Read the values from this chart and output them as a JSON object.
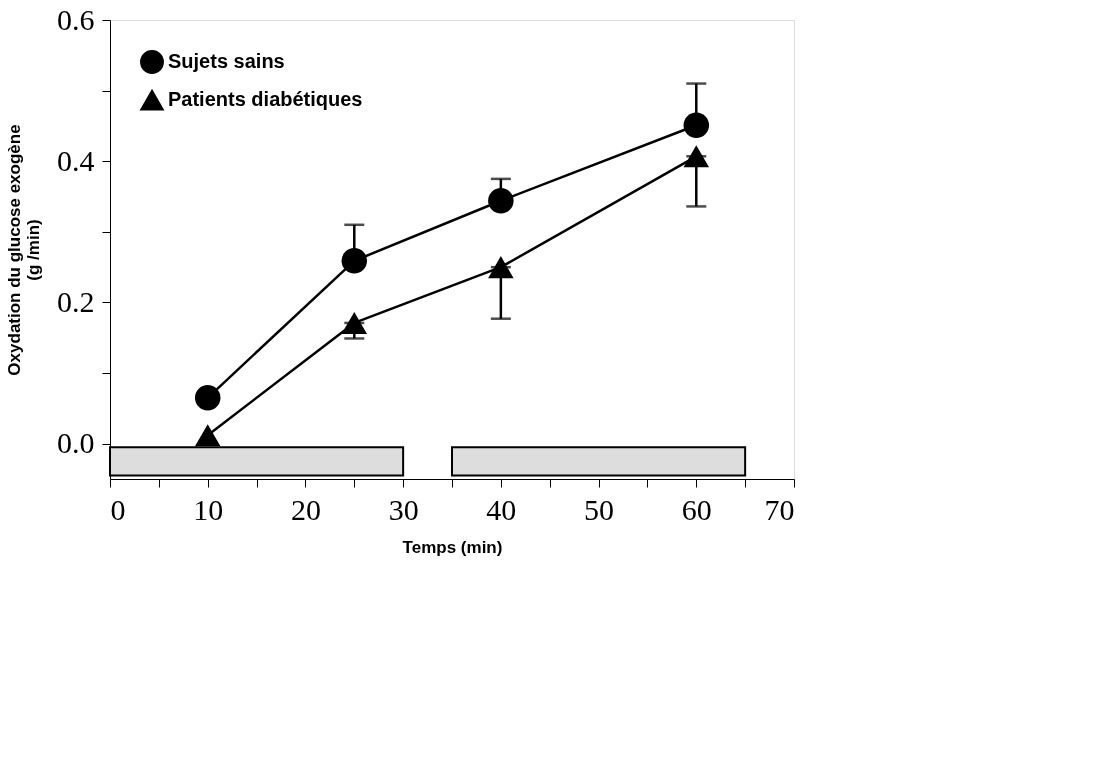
{
  "chart_data": {
    "type": "line",
    "xlabel": "Temps (min)",
    "ylabel": "Oxydation du glucose exogène\n(g /min)",
    "x": [
      10,
      25,
      40,
      60
    ],
    "series": [
      {
        "name": "Sujets sains",
        "color": "#000000",
        "marker": "circle",
        "values": [
          0.065,
          0.259,
          0.344,
          0.451
        ],
        "errors": [
          null,
          [
            0.259,
            0.31
          ],
          [
            0.344,
            0.375
          ],
          [
            0.451,
            0.51
          ]
        ]
      },
      {
        "name": "Patients diabétiques",
        "color": "#000000",
        "marker": "triangle",
        "values": [
          0.012,
          0.171,
          0.25,
          0.407
        ],
        "errors": [
          null,
          [
            0.149,
            0.171
          ],
          [
            0.177,
            0.25
          ],
          [
            0.336,
            0.407
          ]
        ]
      }
    ],
    "xlim": [
      0,
      70
    ],
    "xticks": [
      0,
      {
        "value": 5,
        "label": null
      },
      10,
      {
        "value": 15,
        "label": null
      },
      20,
      {
        "value": 25,
        "label": null
      },
      30,
      {
        "value": 35,
        "label": null
      },
      40,
      {
        "value": 45,
        "label": null
      },
      50,
      {
        "value": 55,
        "label": null
      },
      60,
      {
        "value": 65,
        "label": null
      },
      70
    ],
    "ylim": [
      -0.05,
      0.6
    ],
    "yticks": [
      {
        "value": 0,
        "label": "0.0"
      },
      {
        "value": 0.1,
        "label": null
      },
      {
        "value": 0.2,
        "label": "0.2"
      },
      {
        "value": 0.3,
        "label": null
      },
      {
        "value": 0.4,
        "label": "0.4"
      },
      {
        "value": 0.5,
        "label": null
      },
      {
        "value": 0.6,
        "label": "0.6"
      }
    ],
    "bands": [
      {
        "axis": "x",
        "from": 0,
        "to": 30,
        "color": "#dddddd"
      },
      {
        "axis": "x",
        "from": 35,
        "to": 65,
        "color": "#dddddd"
      }
    ],
    "grid": false,
    "legend": "top left",
    "line_style": "solid"
  }
}
